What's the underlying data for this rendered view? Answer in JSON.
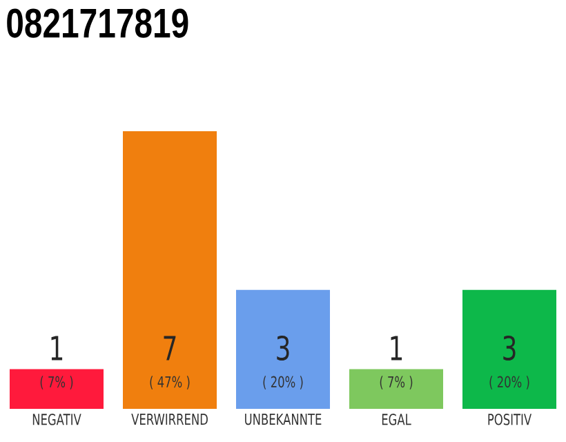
{
  "chart_data": {
    "type": "bar",
    "title": "0821717819",
    "categories": [
      "NEGATIV",
      "VERWIRREND",
      "UNBEKANNTE",
      "EGAL",
      "POSITIV"
    ],
    "values": [
      1,
      7,
      3,
      1,
      3
    ],
    "colors": [
      "#ff1a3c",
      "#f07f0e",
      "#6a9eec",
      "#7ec85e",
      "#0db84a"
    ],
    "data_labels": true,
    "annotations": [
      "( 7% )",
      "( 47% )",
      "( 20% )",
      "( 7% )",
      "( 20% )"
    ]
  }
}
